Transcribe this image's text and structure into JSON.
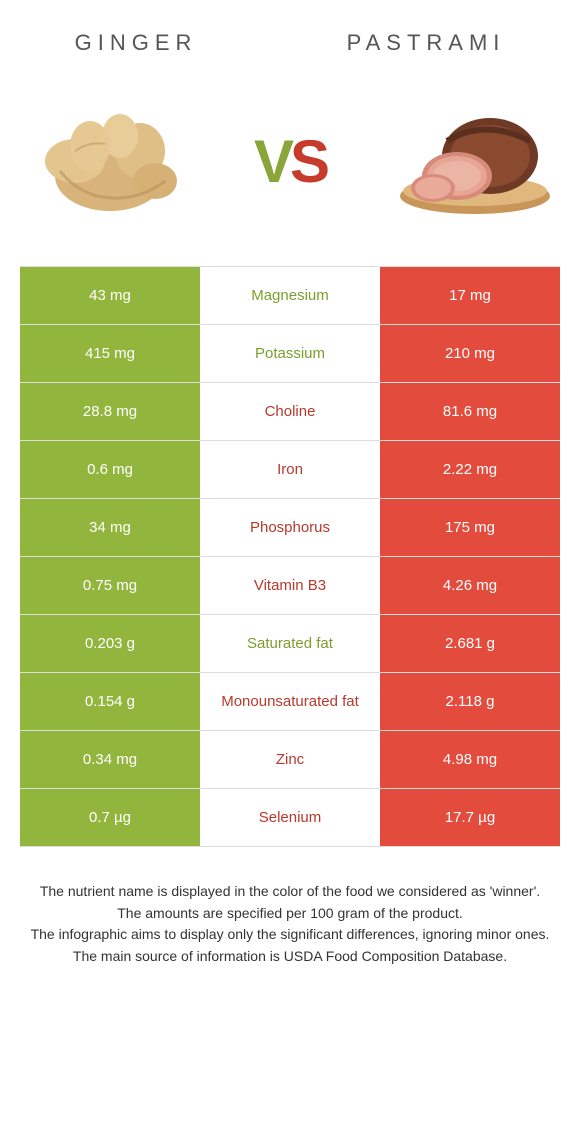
{
  "left_name": "Ginger",
  "right_name": "Pastrami",
  "vs_v": "V",
  "vs_s": "S",
  "colors": {
    "left": "#92b63d",
    "right": "#e34c3d",
    "left_text": "#7a9e2e",
    "right_text": "#b73a2d"
  },
  "rows": [
    {
      "nutrient": "Magnesium",
      "left": "43 mg",
      "right": "17 mg",
      "winner": "left"
    },
    {
      "nutrient": "Potassium",
      "left": "415 mg",
      "right": "210 mg",
      "winner": "left"
    },
    {
      "nutrient": "Choline",
      "left": "28.8 mg",
      "right": "81.6 mg",
      "winner": "right"
    },
    {
      "nutrient": "Iron",
      "left": "0.6 mg",
      "right": "2.22 mg",
      "winner": "right"
    },
    {
      "nutrient": "Phosphorus",
      "left": "34 mg",
      "right": "175 mg",
      "winner": "right"
    },
    {
      "nutrient": "Vitamin B3",
      "left": "0.75 mg",
      "right": "4.26 mg",
      "winner": "right"
    },
    {
      "nutrient": "Saturated fat",
      "left": "0.203 g",
      "right": "2.681 g",
      "winner": "left"
    },
    {
      "nutrient": "Monounsaturated fat",
      "left": "0.154 g",
      "right": "2.118 g",
      "winner": "right"
    },
    {
      "nutrient": "Zinc",
      "left": "0.34 mg",
      "right": "4.98 mg",
      "winner": "right"
    },
    {
      "nutrient": "Selenium",
      "left": "0.7 µg",
      "right": "17.7 µg",
      "winner": "right"
    }
  ],
  "footnotes": [
    "The nutrient name is displayed in the color of the food we considered as 'winner'.",
    "The amounts are specified per 100 gram of the product.",
    "The infographic aims to display only the significant differences, ignoring minor ones.",
    "The main source of information is USDA Food Composition Database."
  ]
}
